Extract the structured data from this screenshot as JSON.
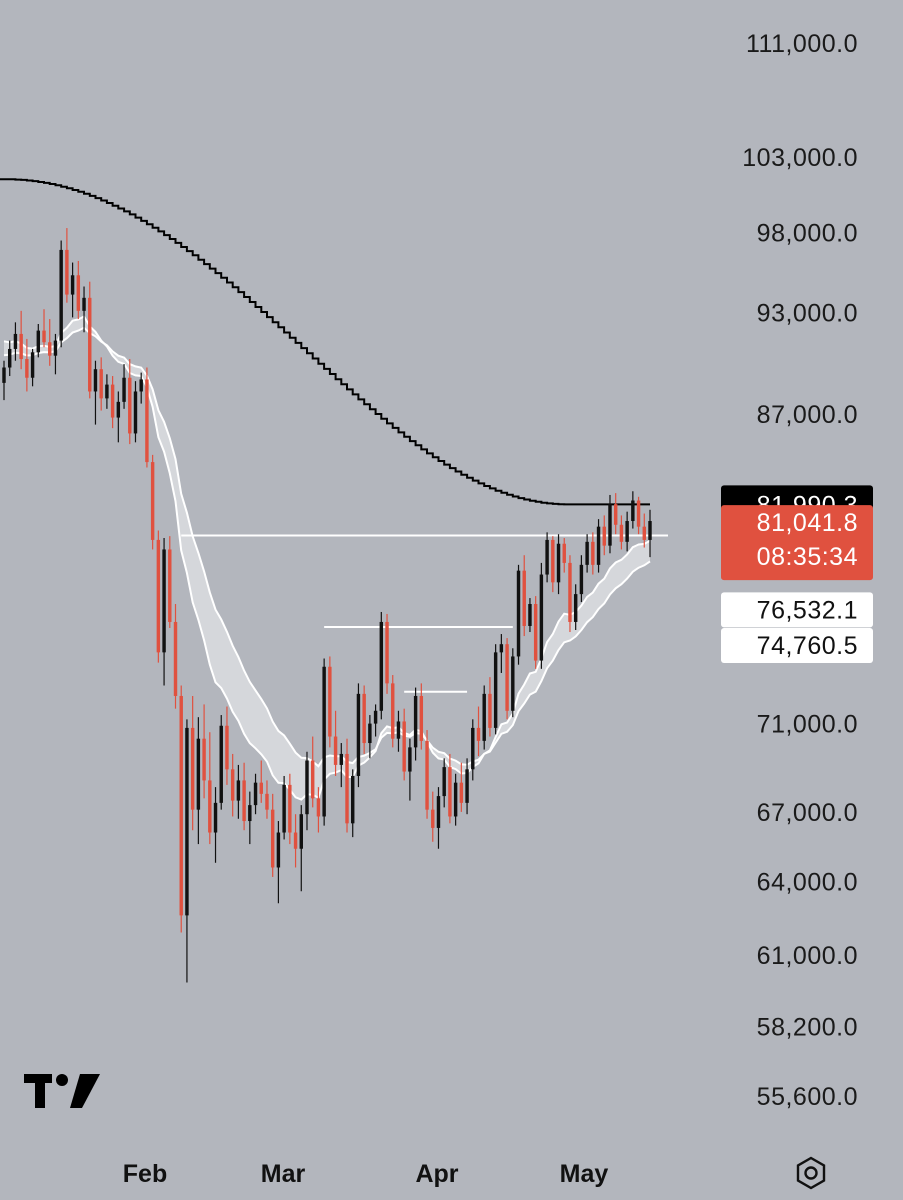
{
  "chart_data": {
    "type": "candlestick",
    "price_axis": {
      "ticks": [
        "111,000.0",
        "103,000.0",
        "98,000.0",
        "93,000.0",
        "87,000.0",
        "71,000.0",
        "67,000.0",
        "64,000.0",
        "61,000.0",
        "58,200.0",
        "55,600.0"
      ],
      "tick_values": [
        111000,
        103000,
        98000,
        93000,
        87000,
        71000,
        67000,
        64000,
        61000,
        58200,
        55600
      ],
      "scale": "log"
    },
    "time_axis": {
      "labels": [
        "Feb",
        "Mar",
        "Apr",
        "May"
      ]
    },
    "price_tags": [
      {
        "text": "81,990.3",
        "value": 81990.3,
        "bg": "#000000",
        "fg": "#ffffff"
      },
      {
        "text": "81,041.8",
        "value": 81041.8,
        "bg": "#e0513f",
        "fg": "#ffffff"
      },
      {
        "text": "08:35:34",
        "bg": "#e0513f",
        "fg": "#ffffff"
      },
      {
        "text": "76,532.1",
        "value": 76532.1,
        "bg": "#ffffff",
        "fg": "#111111"
      },
      {
        "text": "74,760.5",
        "value": 74760.5,
        "bg": "#ffffff",
        "fg": "#111111"
      }
    ],
    "colors": {
      "up": "#111111",
      "down": "#e0513f",
      "ma": "#000000",
      "band": "#ffffff",
      "background": "#b3b6bd"
    },
    "horizontal_levels": [
      80330,
      75650,
      72500
    ],
    "candles": [
      [
        88800,
        90100,
        87800,
        89700
      ],
      [
        89700,
        91300,
        89200,
        90800
      ],
      [
        90800,
        92400,
        90100,
        91700
      ],
      [
        91700,
        93100,
        89600,
        90200
      ],
      [
        90200,
        91400,
        88300,
        89100
      ],
      [
        89100,
        90800,
        88600,
        90600
      ],
      [
        90600,
        92300,
        90300,
        91900
      ],
      [
        91900,
        93200,
        90900,
        91200
      ],
      [
        91200,
        92600,
        89800,
        90400
      ],
      [
        90400,
        91700,
        89300,
        91300
      ],
      [
        91300,
        97500,
        90900,
        96900
      ],
      [
        96900,
        98300,
        93600,
        94100
      ],
      [
        94100,
        96100,
        92700,
        95300
      ],
      [
        95300,
        96200,
        92600,
        93100
      ],
      [
        93100,
        94600,
        91800,
        93900
      ],
      [
        93900,
        94900,
        87900,
        88300
      ],
      [
        88300,
        90100,
        86400,
        89600
      ],
      [
        89600,
        90300,
        87200,
        87900
      ],
      [
        87900,
        89300,
        87300,
        88700
      ],
      [
        88700,
        89200,
        86200,
        86800
      ],
      [
        86800,
        88300,
        85400,
        87700
      ],
      [
        87700,
        89900,
        87300,
        89100
      ],
      [
        89100,
        90200,
        85300,
        85900
      ],
      [
        85900,
        88900,
        85400,
        88300
      ],
      [
        88300,
        89400,
        87600,
        89000
      ],
      [
        89000,
        89700,
        84000,
        84300
      ],
      [
        84300,
        84700,
        79600,
        80100
      ],
      [
        80100,
        80600,
        73900,
        74400
      ],
      [
        74400,
        80200,
        72800,
        79600
      ],
      [
        79600,
        80300,
        75600,
        75900
      ],
      [
        75900,
        76800,
        71700,
        72300
      ],
      [
        72300,
        72800,
        61900,
        62600
      ],
      [
        62600,
        71200,
        59900,
        70800
      ],
      [
        70800,
        72300,
        66200,
        67100
      ],
      [
        67100,
        71300,
        65600,
        70300
      ],
      [
        70300,
        71900,
        67600,
        68400
      ],
      [
        68400,
        70600,
        65600,
        66100
      ],
      [
        66100,
        68100,
        64800,
        67400
      ],
      [
        67400,
        71400,
        67100,
        70900
      ],
      [
        70900,
        71800,
        68200,
        68900
      ],
      [
        68900,
        69600,
        66800,
        67500
      ],
      [
        67500,
        69100,
        66700,
        68400
      ],
      [
        68400,
        69200,
        66200,
        66600
      ],
      [
        66600,
        67900,
        65600,
        67300
      ],
      [
        67300,
        68700,
        66900,
        68300
      ],
      [
        68300,
        69300,
        67400,
        67800
      ],
      [
        67800,
        68400,
        66700,
        67100
      ],
      [
        67100,
        67800,
        64200,
        64600
      ],
      [
        64600,
        66600,
        63100,
        66100
      ],
      [
        66100,
        68600,
        65800,
        68200
      ],
      [
        68200,
        68700,
        65600,
        66100
      ],
      [
        66100,
        66900,
        64600,
        65400
      ],
      [
        65400,
        67300,
        63600,
        66900
      ],
      [
        66900,
        69700,
        66200,
        69300
      ],
      [
        69300,
        70400,
        67200,
        67600
      ],
      [
        67600,
        68100,
        66100,
        66800
      ],
      [
        66800,
        74100,
        66400,
        73700
      ],
      [
        73700,
        74200,
        69900,
        70400
      ],
      [
        70400,
        71600,
        68600,
        69100
      ],
      [
        69100,
        70100,
        68100,
        69600
      ],
      [
        69600,
        70300,
        66100,
        66500
      ],
      [
        66500,
        68900,
        65900,
        68600
      ],
      [
        68600,
        72900,
        68100,
        72400
      ],
      [
        72400,
        72800,
        69600,
        70100
      ],
      [
        70100,
        71400,
        69400,
        71000
      ],
      [
        71000,
        71900,
        70400,
        71600
      ],
      [
        71600,
        76400,
        71200,
        75900
      ],
      [
        75900,
        76300,
        72400,
        72900
      ],
      [
        72900,
        73300,
        69900,
        70300
      ],
      [
        70300,
        71600,
        69700,
        71100
      ],
      [
        71100,
        71700,
        68400,
        68800
      ],
      [
        68800,
        70300,
        67500,
        69900
      ],
      [
        69900,
        72700,
        69300,
        72300
      ],
      [
        72300,
        72900,
        69800,
        70200
      ],
      [
        70200,
        70700,
        66700,
        67100
      ],
      [
        67100,
        67900,
        65700,
        66300
      ],
      [
        66300,
        68100,
        65400,
        67700
      ],
      [
        67700,
        69400,
        67200,
        69000
      ],
      [
        69000,
        69600,
        66500,
        66800
      ],
      [
        66800,
        68700,
        66400,
        68300
      ],
      [
        68300,
        69200,
        67000,
        67400
      ],
      [
        67400,
        69400,
        66900,
        68900
      ],
      [
        68900,
        71200,
        68400,
        70800
      ],
      [
        70800,
        71800,
        69500,
        70200
      ],
      [
        70200,
        72800,
        69800,
        72400
      ],
      [
        72400,
        73200,
        70400,
        70800
      ],
      [
        70800,
        74800,
        70500,
        74400
      ],
      [
        74400,
        75300,
        73400,
        74800
      ],
      [
        74800,
        75100,
        71200,
        71600
      ],
      [
        71600,
        74600,
        71300,
        74200
      ],
      [
        74200,
        78800,
        73800,
        78500
      ],
      [
        78500,
        79300,
        75200,
        75700
      ],
      [
        75700,
        77100,
        75400,
        76800
      ],
      [
        76800,
        77200,
        73600,
        74000
      ],
      [
        74000,
        78900,
        73600,
        78300
      ],
      [
        78300,
        80500,
        77900,
        80100
      ],
      [
        80100,
        80300,
        77400,
        77900
      ],
      [
        77900,
        80400,
        77300,
        79900
      ],
      [
        79900,
        80200,
        78400,
        78900
      ],
      [
        78900,
        79300,
        75400,
        75900
      ],
      [
        75900,
        77800,
        75500,
        77300
      ],
      [
        77300,
        79300,
        76900,
        78800
      ],
      [
        78800,
        80400,
        78400,
        80000
      ],
      [
        80000,
        80500,
        78300,
        78800
      ],
      [
        78800,
        81200,
        78400,
        80800
      ],
      [
        80800,
        81400,
        79300,
        79800
      ],
      [
        79800,
        82500,
        79400,
        82000
      ],
      [
        82000,
        82600,
        80400,
        80900
      ],
      [
        80900,
        81400,
        79600,
        80000
      ],
      [
        80000,
        81600,
        79500,
        81100
      ],
      [
        81100,
        82700,
        80700,
        82200
      ],
      [
        82200,
        82400,
        80400,
        80800
      ],
      [
        80800,
        81500,
        79700,
        80100
      ],
      [
        80100,
        81700,
        79200,
        81100
      ]
    ]
  },
  "ui": {
    "settings_icon": "hexagon-settings-icon",
    "logo": "tradingview-logo"
  }
}
